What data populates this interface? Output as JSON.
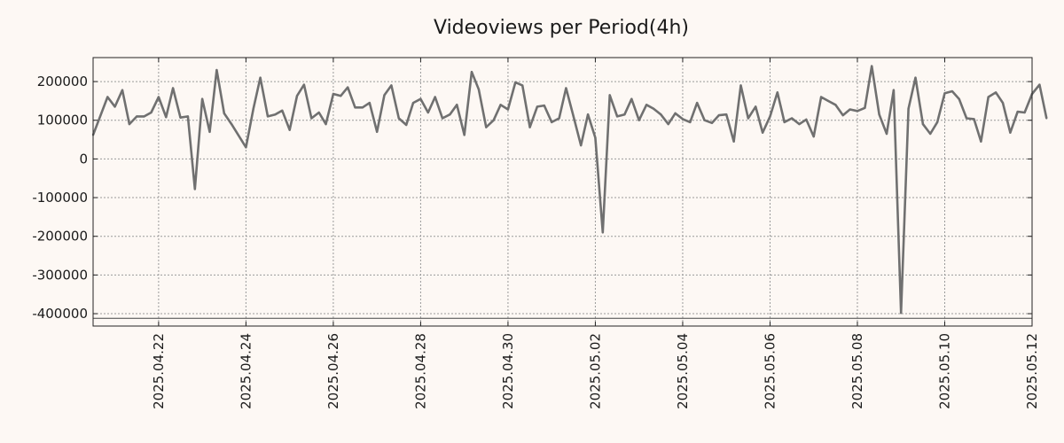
{
  "chart_data": {
    "type": "line",
    "title": "Videoviews per Period(4h)",
    "xlabel": "",
    "ylabel": "",
    "grid": true,
    "legend": "none",
    "x_start": "2025.04.20 12:00",
    "x_end": "2025.05.12",
    "xlim_days": [
      0,
      21.5
    ],
    "ylim": [
      -432000,
      262000
    ],
    "reference_line": -412000,
    "yticks": [
      {
        "value": 200000,
        "label": "200000"
      },
      {
        "value": 100000,
        "label": "100000"
      },
      {
        "value": 0,
        "label": "0"
      },
      {
        "value": -100000,
        "label": "-100000"
      },
      {
        "value": -200000,
        "label": "-200000"
      },
      {
        "value": -300000,
        "label": "-300000"
      },
      {
        "value": -400000,
        "label": "-400000"
      }
    ],
    "xticks": [
      {
        "day": 1.5,
        "label": "2025.04.22"
      },
      {
        "day": 3.5,
        "label": "2025.04.24"
      },
      {
        "day": 5.5,
        "label": "2025.04.26"
      },
      {
        "day": 7.5,
        "label": "2025.04.28"
      },
      {
        "day": 9.5,
        "label": "2025.04.30"
      },
      {
        "day": 11.5,
        "label": "2025.05.02"
      },
      {
        "day": 13.5,
        "label": "2025.05.04"
      },
      {
        "day": 15.5,
        "label": "2025.05.06"
      },
      {
        "day": 17.5,
        "label": "2025.05.08"
      },
      {
        "day": 19.5,
        "label": "2025.05.10"
      },
      {
        "day": 21.5,
        "label": "2025.05.12"
      }
    ],
    "series": [
      {
        "name": "Videoviews",
        "color": "#707070",
        "points": [
          [
            0.0,
            62000
          ],
          [
            0.33,
            160000
          ],
          [
            0.5,
            135000
          ],
          [
            0.67,
            178000
          ],
          [
            0.83,
            90000
          ],
          [
            1.0,
            110000
          ],
          [
            1.17,
            110000
          ],
          [
            1.33,
            120000
          ],
          [
            1.5,
            160000
          ],
          [
            1.67,
            108000
          ],
          [
            1.83,
            183000
          ],
          [
            2.0,
            107000
          ],
          [
            2.17,
            110000
          ],
          [
            2.33,
            -78000
          ],
          [
            2.5,
            155000
          ],
          [
            2.67,
            70000
          ],
          [
            2.83,
            230000
          ],
          [
            3.0,
            118000
          ],
          [
            3.17,
            90000
          ],
          [
            3.5,
            30000
          ],
          [
            3.67,
            130000
          ],
          [
            3.83,
            210000
          ],
          [
            4.0,
            110000
          ],
          [
            4.17,
            115000
          ],
          [
            4.33,
            125000
          ],
          [
            4.5,
            75000
          ],
          [
            4.67,
            163000
          ],
          [
            4.83,
            192000
          ],
          [
            5.0,
            105000
          ],
          [
            5.17,
            120000
          ],
          [
            5.33,
            90000
          ],
          [
            5.5,
            168000
          ],
          [
            5.67,
            163000
          ],
          [
            5.83,
            185000
          ],
          [
            6.0,
            133000
          ],
          [
            6.17,
            133000
          ],
          [
            6.33,
            145000
          ],
          [
            6.5,
            70000
          ],
          [
            6.67,
            165000
          ],
          [
            6.83,
            190000
          ],
          [
            7.0,
            105000
          ],
          [
            7.17,
            88000
          ],
          [
            7.33,
            145000
          ],
          [
            7.5,
            155000
          ],
          [
            7.67,
            120000
          ],
          [
            7.83,
            160000
          ],
          [
            8.0,
            105000
          ],
          [
            8.17,
            115000
          ],
          [
            8.33,
            140000
          ],
          [
            8.5,
            62000
          ],
          [
            8.67,
            225000
          ],
          [
            8.83,
            180000
          ],
          [
            9.0,
            82000
          ],
          [
            9.17,
            100000
          ],
          [
            9.33,
            140000
          ],
          [
            9.5,
            128000
          ],
          [
            9.67,
            198000
          ],
          [
            9.83,
            190000
          ],
          [
            10.0,
            82000
          ],
          [
            10.17,
            135000
          ],
          [
            10.33,
            138000
          ],
          [
            10.5,
            95000
          ],
          [
            10.67,
            105000
          ],
          [
            10.83,
            183000
          ],
          [
            11.0,
            110000
          ],
          [
            11.17,
            35000
          ],
          [
            11.33,
            115000
          ],
          [
            11.5,
            55000
          ],
          [
            11.67,
            -190000
          ],
          [
            11.83,
            165000
          ],
          [
            12.0,
            110000
          ],
          [
            12.17,
            115000
          ],
          [
            12.33,
            155000
          ],
          [
            12.5,
            100000
          ],
          [
            12.67,
            140000
          ],
          [
            12.83,
            130000
          ],
          [
            13.0,
            115000
          ],
          [
            13.17,
            90000
          ],
          [
            13.33,
            118000
          ],
          [
            13.5,
            103000
          ],
          [
            13.67,
            95000
          ],
          [
            13.83,
            145000
          ],
          [
            14.0,
            100000
          ],
          [
            14.17,
            93000
          ],
          [
            14.33,
            113000
          ],
          [
            14.5,
            115000
          ],
          [
            14.67,
            45000
          ],
          [
            14.83,
            190000
          ],
          [
            15.0,
            105000
          ],
          [
            15.17,
            135000
          ],
          [
            15.33,
            68000
          ],
          [
            15.5,
            110000
          ],
          [
            15.67,
            172000
          ],
          [
            15.83,
            95000
          ],
          [
            16.0,
            105000
          ],
          [
            16.17,
            90000
          ],
          [
            16.33,
            102000
          ],
          [
            16.5,
            58000
          ],
          [
            16.67,
            160000
          ],
          [
            16.83,
            150000
          ],
          [
            17.0,
            140000
          ],
          [
            17.17,
            113000
          ],
          [
            17.33,
            128000
          ],
          [
            17.5,
            124000
          ],
          [
            17.67,
            132000
          ],
          [
            17.83,
            240000
          ],
          [
            18.0,
            115000
          ],
          [
            18.17,
            65000
          ],
          [
            18.33,
            178000
          ],
          [
            18.5,
            -398000
          ],
          [
            18.67,
            130000
          ],
          [
            18.83,
            210000
          ],
          [
            19.0,
            90000
          ],
          [
            19.17,
            65000
          ],
          [
            19.33,
            95000
          ],
          [
            19.5,
            170000
          ],
          [
            19.67,
            175000
          ],
          [
            19.83,
            155000
          ],
          [
            20.0,
            105000
          ],
          [
            20.17,
            103000
          ],
          [
            20.33,
            45000
          ],
          [
            20.5,
            160000
          ],
          [
            20.67,
            172000
          ],
          [
            20.83,
            145000
          ],
          [
            21.0,
            68000
          ],
          [
            21.17,
            122000
          ],
          [
            21.33,
            120000
          ],
          [
            21.5,
            168000
          ],
          [
            21.67,
            192000
          ],
          [
            21.83,
            105000
          ]
        ]
      }
    ]
  }
}
